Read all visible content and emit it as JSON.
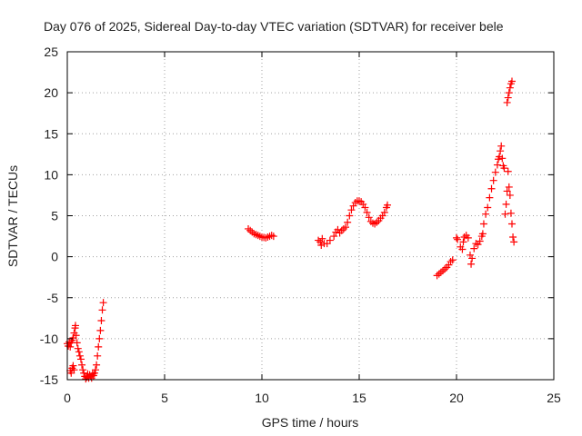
{
  "chart_data": {
    "type": "scatter",
    "title": "Day 076 of 2025, Sidereal Day-to-day VTEC variation (SDTVAR) for receiver bele",
    "xlabel": "GPS time / hours",
    "ylabel": "SDTVAR / TECUs",
    "xlim": [
      0,
      25
    ],
    "ylim": [
      -15,
      25
    ],
    "xticks": [
      0,
      5,
      10,
      15,
      20,
      25
    ],
    "yticks": [
      -15,
      -10,
      -5,
      0,
      5,
      10,
      15,
      20,
      25
    ],
    "grid": true,
    "marker": "+",
    "series": [
      {
        "name": "SDTVAR",
        "color": "#ff0000",
        "points": [
          [
            0.0,
            -10.6
          ],
          [
            0.05,
            -10.9
          ],
          [
            0.1,
            -10.4
          ],
          [
            0.15,
            -11.0
          ],
          [
            0.2,
            -10.5
          ],
          [
            0.25,
            -10.2
          ],
          [
            0.3,
            -9.9
          ],
          [
            0.35,
            -9.3
          ],
          [
            0.4,
            -8.7
          ],
          [
            0.42,
            -8.4
          ],
          [
            0.45,
            -9.6
          ],
          [
            0.5,
            -10.5
          ],
          [
            0.55,
            -11.2
          ],
          [
            0.6,
            -11.6
          ],
          [
            0.65,
            -12.1
          ],
          [
            0.7,
            -12.5
          ],
          [
            0.75,
            -13.2
          ],
          [
            0.8,
            -13.8
          ],
          [
            0.85,
            -14.2
          ],
          [
            0.9,
            -14.6
          ],
          [
            0.95,
            -14.9
          ],
          [
            1.0,
            -14.7
          ],
          [
            1.05,
            -14.3
          ],
          [
            1.1,
            -14.8
          ],
          [
            1.15,
            -14.4
          ],
          [
            1.2,
            -14.6
          ],
          [
            1.25,
            -14.8
          ],
          [
            1.3,
            -14.3
          ],
          [
            1.35,
            -14.5
          ],
          [
            1.4,
            -14.2
          ],
          [
            1.45,
            -13.8
          ],
          [
            1.5,
            -13.2
          ],
          [
            1.55,
            -12.1
          ],
          [
            1.6,
            -11.0
          ],
          [
            1.65,
            -10.0
          ],
          [
            1.7,
            -9.0
          ],
          [
            1.75,
            -7.8
          ],
          [
            1.8,
            -6.5
          ],
          [
            1.85,
            -5.6
          ],
          [
            0.15,
            -13.9
          ],
          [
            0.2,
            -14.2
          ],
          [
            0.25,
            -13.6
          ],
          [
            0.3,
            -13.3
          ],
          [
            0.35,
            -13.8
          ],
          [
            9.3,
            3.4
          ],
          [
            9.4,
            3.2
          ],
          [
            9.5,
            3.0
          ],
          [
            9.6,
            2.8
          ],
          [
            9.7,
            2.7
          ],
          [
            9.8,
            2.6
          ],
          [
            9.9,
            2.5
          ],
          [
            10.0,
            2.4
          ],
          [
            10.1,
            2.35
          ],
          [
            10.2,
            2.3
          ],
          [
            10.3,
            2.4
          ],
          [
            10.4,
            2.5
          ],
          [
            10.5,
            2.6
          ],
          [
            10.6,
            2.5
          ],
          [
            12.9,
            2.0
          ],
          [
            13.0,
            1.8
          ],
          [
            13.05,
            1.4
          ],
          [
            13.1,
            2.2
          ],
          [
            13.2,
            1.6
          ],
          [
            13.35,
            1.6
          ],
          [
            13.5,
            2.0
          ],
          [
            13.7,
            2.5
          ],
          [
            13.8,
            3.0
          ],
          [
            13.9,
            3.3
          ],
          [
            14.0,
            2.9
          ],
          [
            14.1,
            3.2
          ],
          [
            14.2,
            3.4
          ],
          [
            14.3,
            3.6
          ],
          [
            14.4,
            4.2
          ],
          [
            14.5,
            5.0
          ],
          [
            14.6,
            5.7
          ],
          [
            14.7,
            6.2
          ],
          [
            14.8,
            6.6
          ],
          [
            14.9,
            6.8
          ],
          [
            15.0,
            6.8
          ],
          [
            15.1,
            6.7
          ],
          [
            15.2,
            6.4
          ],
          [
            15.3,
            6.0
          ],
          [
            15.4,
            5.4
          ],
          [
            15.5,
            4.8
          ],
          [
            15.6,
            4.3
          ],
          [
            15.7,
            4.1
          ],
          [
            15.8,
            4.0
          ],
          [
            15.9,
            4.2
          ],
          [
            16.0,
            4.4
          ],
          [
            16.1,
            4.7
          ],
          [
            16.2,
            5.0
          ],
          [
            16.3,
            5.4
          ],
          [
            16.4,
            6.0
          ],
          [
            16.45,
            6.3
          ],
          [
            19.0,
            -2.3
          ],
          [
            19.1,
            -2.1
          ],
          [
            19.2,
            -1.9
          ],
          [
            19.3,
            -1.7
          ],
          [
            19.4,
            -1.5
          ],
          [
            19.5,
            -1.3
          ],
          [
            19.6,
            -1.0
          ],
          [
            19.7,
            -0.6
          ],
          [
            19.8,
            -0.4
          ],
          [
            20.0,
            2.3
          ],
          [
            20.05,
            2.1
          ],
          [
            20.2,
            1.2
          ],
          [
            20.3,
            0.9
          ],
          [
            20.35,
            1.8
          ],
          [
            20.4,
            2.4
          ],
          [
            20.5,
            2.6
          ],
          [
            20.6,
            2.3
          ],
          [
            20.7,
            0.2
          ],
          [
            20.75,
            -0.9
          ],
          [
            20.8,
            -0.2
          ],
          [
            20.9,
            1.0
          ],
          [
            21.0,
            1.6
          ],
          [
            21.1,
            1.5
          ],
          [
            21.2,
            1.9
          ],
          [
            21.3,
            2.5
          ],
          [
            21.35,
            2.8
          ],
          [
            21.4,
            4.0
          ],
          [
            21.5,
            5.2
          ],
          [
            21.6,
            6.0
          ],
          [
            21.7,
            7.2
          ],
          [
            21.8,
            8.3
          ],
          [
            21.9,
            9.3
          ],
          [
            22.0,
            10.3
          ],
          [
            22.1,
            11.2
          ],
          [
            22.15,
            11.9
          ],
          [
            22.2,
            12.2
          ],
          [
            22.25,
            12.9
          ],
          [
            22.3,
            13.5
          ],
          [
            22.35,
            12.0
          ],
          [
            22.4,
            11.1
          ],
          [
            22.45,
            10.8
          ],
          [
            22.5,
            5.2
          ],
          [
            22.55,
            6.4
          ],
          [
            22.6,
            8.0
          ],
          [
            22.65,
            10.4
          ],
          [
            22.7,
            8.5
          ],
          [
            22.75,
            7.5
          ],
          [
            22.8,
            5.3
          ],
          [
            22.85,
            4.0
          ],
          [
            22.9,
            2.4
          ],
          [
            22.95,
            1.8
          ],
          [
            22.6,
            18.8
          ],
          [
            22.65,
            19.4
          ],
          [
            22.7,
            20.0
          ],
          [
            22.75,
            20.6
          ],
          [
            22.8,
            21.1
          ],
          [
            22.85,
            21.4
          ]
        ]
      }
    ]
  }
}
